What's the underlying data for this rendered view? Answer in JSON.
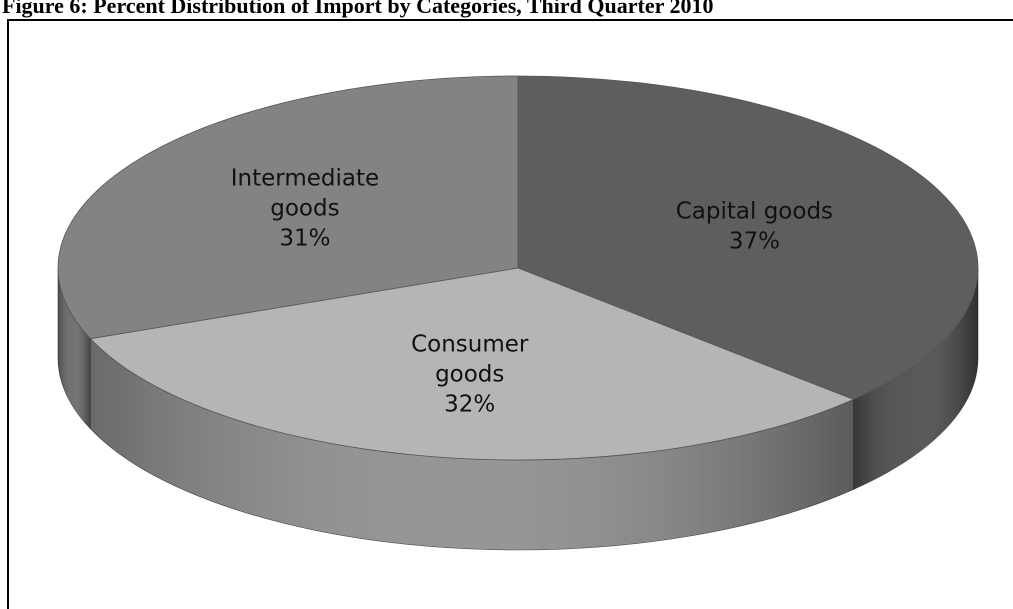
{
  "figure": {
    "title": "Figure 6: Percent Distribution of Import by Categories, Third Quarter 2010"
  },
  "chart_data": {
    "type": "pie",
    "style": "3d",
    "categories": [
      "Capital goods",
      "Consumer goods",
      "Intermediate goods"
    ],
    "values": [
      37,
      32,
      31
    ],
    "unit": "%",
    "labels": [
      [
        "Capital goods",
        "37%"
      ],
      [
        "Consumer",
        "goods",
        "32%"
      ],
      [
        "Intermediate",
        "goods",
        "31%"
      ]
    ],
    "colors": {
      "Capital goods": "#5e5e5e",
      "Consumer goods": "#b5b5b5",
      "Intermediate goods": "#838383"
    }
  }
}
